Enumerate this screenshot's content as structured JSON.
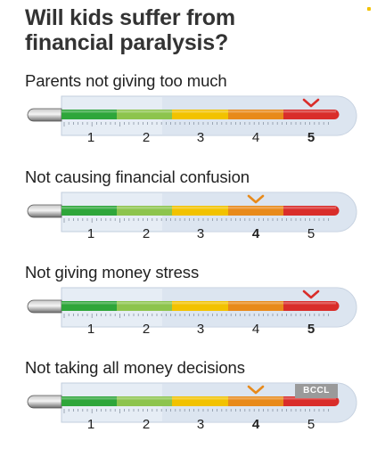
{
  "title_line1": "Will kids suffer from",
  "title_line2": "financial paralysis?",
  "scale_labels": [
    "1",
    "2",
    "3",
    "4",
    "5"
  ],
  "segment_colors": [
    "#2ea63a",
    "#8dc44d",
    "#f2c200",
    "#e88a1a",
    "#d92d2a"
  ],
  "marker_colors": {
    "5": "#d92d2a",
    "4": "#e88a1a"
  },
  "badge": "BCCL",
  "chart_data": [
    {
      "type": "gauge",
      "title": "Parents not giving too much",
      "scale": [
        1,
        5
      ],
      "value": 5
    },
    {
      "type": "gauge",
      "title": "Not causing financial confusion",
      "scale": [
        1,
        5
      ],
      "value": 4
    },
    {
      "type": "gauge",
      "title": "Not giving money stress",
      "scale": [
        1,
        5
      ],
      "value": 5
    },
    {
      "type": "gauge",
      "title": "Not taking all money decisions",
      "scale": [
        1,
        5
      ],
      "value": 4
    }
  ]
}
